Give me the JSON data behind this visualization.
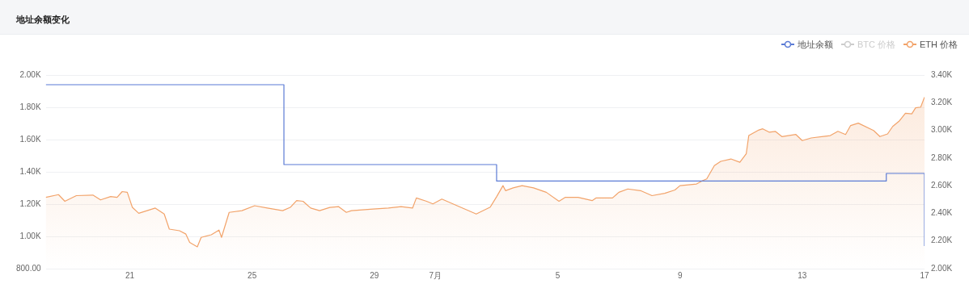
{
  "chart_data": {
    "type": "line",
    "title": "地址余额变化",
    "legend": "top right",
    "grid": "y",
    "marker": "none",
    "xlim": [
      "--06-18T06:00",
      "--07-17T00:00"
    ],
    "xticks": [
      {
        "value": "--06-21",
        "label": "21"
      },
      {
        "value": "--06-25",
        "label": "25"
      },
      {
        "value": "--06-29",
        "label": "29"
      },
      {
        "value": "--07-01",
        "label": "7月"
      },
      {
        "value": "--07-05",
        "label": "5"
      },
      {
        "value": "--07-09",
        "label": "9"
      },
      {
        "value": "--07-13",
        "label": "13"
      },
      {
        "value": "--07-17",
        "label": "17"
      }
    ],
    "ylim": [
      800,
      2000
    ],
    "yticks": [
      {
        "value": 800,
        "label": "800.00"
      },
      {
        "value": 1000,
        "label": "1.00K"
      },
      {
        "value": 1200,
        "label": "1.20K"
      },
      {
        "value": 1400,
        "label": "1.40K"
      },
      {
        "value": 1600,
        "label": "1.60K"
      },
      {
        "value": 1800,
        "label": "1.80K"
      },
      {
        "value": 2000,
        "label": "2.00K"
      }
    ],
    "y2lim": [
      2000,
      3400
    ],
    "y2ticks": [
      {
        "value": 2000,
        "label": "2.00K"
      },
      {
        "value": 2200,
        "label": "2.20K"
      },
      {
        "value": 2400,
        "label": "2.40K"
      },
      {
        "value": 2600,
        "label": "2.60K"
      },
      {
        "value": 2800,
        "label": "2.80K"
      },
      {
        "value": 3000,
        "label": "3.00K"
      },
      {
        "value": 3200,
        "label": "3.20K"
      },
      {
        "value": 3400,
        "label": "3.40K"
      }
    ],
    "series": [
      {
        "name": "地址余额",
        "type": "step",
        "color": "#5b7bd5",
        "x": [
          "--06-18T06:00",
          "--06-26T01:00",
          "--07-03T00:00",
          "--07-15T18:00",
          "--07-17T00:00"
        ],
        "values": [
          1940,
          1445,
          1343,
          1390,
          940
        ]
      },
      {
        "name": "BTC 价格",
        "type": "line",
        "color": "#cccccc"
      },
      {
        "name": "ETH 价格",
        "type": "area",
        "axis": "y2",
        "color": "#f2a36a",
        "x": [
          "--06-18T06:00",
          "--06-18T16:00",
          "--06-18T21:00",
          "--06-19T06:00",
          "--06-19T19:00",
          "--06-20T01:00",
          "--06-20T09:00",
          "--06-20T14:00",
          "--06-20T18:00",
          "--06-20T22:00",
          "--06-21T02:00",
          "--06-21T07:00",
          "--06-21T20:00",
          "--06-22T03:00",
          "--06-22T07:00",
          "--06-22T15:00",
          "--06-22T20:00",
          "--06-22T23:00",
          "--06-23T05:00",
          "--06-23T08:00",
          "--06-23T16:00",
          "--06-23T22:00",
          "--06-24T00:00",
          "--06-24T06:00",
          "--06-24T16:00",
          "--06-25T02:00",
          "--06-25T12:00",
          "--06-26T00:00",
          "--06-26T06:00",
          "--06-26T11:00",
          "--06-26T16:00",
          "--06-26T22:00",
          "--06-27T05:00",
          "--06-27T13:00",
          "--06-27T20:00",
          "--06-28T02:00",
          "--06-28T06:00",
          "--06-28T23:00",
          "--06-29T11:00",
          "--06-29T21:00",
          "--06-30T06:00",
          "--06-30T09:00",
          "--06-30T17:00",
          "--06-30T22:00",
          "--07-01T05:00",
          "--07-01T17:00",
          "--07-02T08:00",
          "--07-02T19:00",
          "--07-03T00:00",
          "--07-03T05:00",
          "--07-03T07:00",
          "--07-03T13:00",
          "--07-03T20:00",
          "--07-04T05:00",
          "--07-04T15:00",
          "--07-05T01:00",
          "--07-05T06:00",
          "--07-05T16:00",
          "--07-06T03:00",
          "--07-06T06:00",
          "--07-06T19:00",
          "--07-07T00:00",
          "--07-07T07:00",
          "--07-07T17:00",
          "--07-08T02:00",
          "--07-08T12:00",
          "--07-08T20:00",
          "--07-09T00:00",
          "--07-09T13:00",
          "--07-09T18:00",
          "--07-09T21:00",
          "--07-10T03:00",
          "--07-10T08:00",
          "--07-10T16:00",
          "--07-10T23:00",
          "--07-11T04:00",
          "--07-11T06:00",
          "--07-11T14:00",
          "--07-11T17:00",
          "--07-11T22:00",
          "--07-12T03:00",
          "--07-12T08:00",
          "--07-12T19:00",
          "--07-13T00:00",
          "--07-13T07:00",
          "--07-13T22:00",
          "--07-14T04:00",
          "--07-14T10:00",
          "--07-14T14:00",
          "--07-14T20:00",
          "--07-15T08:00",
          "--07-15T13:00",
          "--07-15T19:00",
          "--07-15T23:00",
          "--07-16T04:00",
          "--07-16T09:00",
          "--07-16T14:00",
          "--07-16T17:00",
          "--07-16T21:00",
          "--07-17T00:00"
        ],
        "values": [
          2516,
          2535,
          2487,
          2528,
          2532,
          2497,
          2521,
          2516,
          2557,
          2552,
          2443,
          2400,
          2438,
          2395,
          2286,
          2274,
          2250,
          2190,
          2158,
          2226,
          2245,
          2279,
          2226,
          2407,
          2419,
          2455,
          2438,
          2419,
          2443,
          2492,
          2487,
          2438,
          2419,
          2443,
          2448,
          2407,
          2419,
          2431,
          2438,
          2448,
          2438,
          2511,
          2487,
          2468,
          2503,
          2455,
          2395,
          2445,
          2520,
          2600,
          2564,
          2584,
          2600,
          2584,
          2552,
          2487,
          2516,
          2516,
          2492,
          2511,
          2511,
          2552,
          2576,
          2564,
          2528,
          2545,
          2569,
          2600,
          2612,
          2637,
          2649,
          2745,
          2776,
          2793,
          2769,
          2830,
          2962,
          3003,
          3011,
          2987,
          2992,
          2955,
          2970,
          2926,
          2945,
          2962,
          2993,
          2970,
          3035,
          3052,
          2999,
          2955,
          2974,
          3028,
          3066,
          3124,
          3119,
          3163,
          3168,
          3240
        ]
      }
    ]
  }
}
